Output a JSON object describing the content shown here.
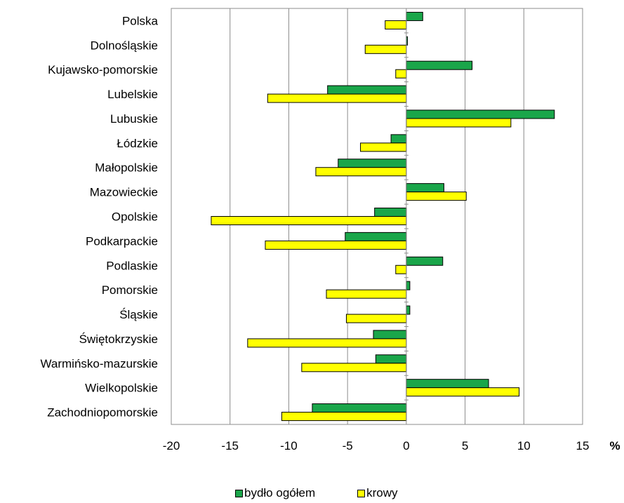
{
  "chart_data": {
    "type": "bar",
    "orientation": "horizontal",
    "title": "",
    "xlabel": "",
    "ylabel": "",
    "unit_label": "%",
    "xlim": [
      -20,
      15
    ],
    "xticks": [
      -20,
      -15,
      -10,
      -5,
      0,
      5,
      10,
      15
    ],
    "grid": "vertical",
    "legend_position": "bottom",
    "categories": [
      "Polska",
      "Dolnośląskie",
      "Kujawsko-pomorskie",
      "Lubelskie",
      "Lubuskie",
      "Łódzkie",
      "Małopolskie",
      "Mazowieckie",
      "Opolskie",
      "Podkarpackie",
      "Podlaskie",
      "Pomorskie",
      "Śląskie",
      "Świętokrzyskie",
      "Warmińsko-mazurskie",
      "Wielkopolskie",
      "Zachodniopomorskie"
    ],
    "series": [
      {
        "name": "bydło ogółem",
        "color": "#1aa64a",
        "values": [
          1.4,
          0.1,
          5.6,
          -6.7,
          12.6,
          -1.3,
          -5.8,
          3.2,
          -2.7,
          -5.2,
          3.1,
          0.3,
          0.3,
          -2.8,
          -2.6,
          7.0,
          -8.0
        ]
      },
      {
        "name": "krowy",
        "color": "#ffff00",
        "values": [
          -1.8,
          -3.5,
          -0.9,
          -11.8,
          8.9,
          -3.9,
          -7.7,
          5.1,
          -16.6,
          -12.0,
          -0.9,
          -6.8,
          -5.1,
          -13.5,
          -8.9,
          9.6,
          -10.6
        ]
      }
    ]
  }
}
